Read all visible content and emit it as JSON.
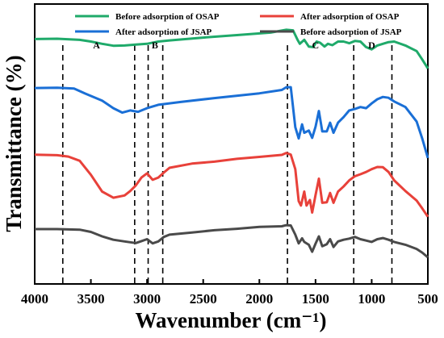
{
  "chart_data": {
    "type": "line",
    "title": "",
    "xlabel": "Wavenumber (cm⁻¹)",
    "ylabel": "Transmittance (%)",
    "xlim": [
      4000,
      500
    ],
    "x_reversed": true,
    "ylim": [
      0,
      1
    ],
    "y_ticks_shown": false,
    "xticks": [
      4000,
      3500,
      3000,
      2500,
      2000,
      1500,
      1000,
      500
    ],
    "grid": false,
    "legend_position": "top",
    "series": [
      {
        "name": "Before adsorption of OSAP",
        "color": "#1faa6a",
        "points": [
          [
            4000,
            0.875
          ],
          [
            3800,
            0.876
          ],
          [
            3600,
            0.872
          ],
          [
            3500,
            0.866
          ],
          [
            3400,
            0.858
          ],
          [
            3300,
            0.851
          ],
          [
            3200,
            0.852
          ],
          [
            3100,
            0.855
          ],
          [
            3000,
            0.858
          ],
          [
            2900,
            0.866
          ],
          [
            2800,
            0.87
          ],
          [
            2500,
            0.88
          ],
          [
            2200,
            0.889
          ],
          [
            1900,
            0.898
          ],
          [
            1760,
            0.908
          ],
          [
            1700,
            0.906
          ],
          [
            1660,
            0.872
          ],
          [
            1640,
            0.858
          ],
          [
            1600,
            0.872
          ],
          [
            1560,
            0.848
          ],
          [
            1520,
            0.846
          ],
          [
            1490,
            0.866
          ],
          [
            1460,
            0.862
          ],
          [
            1420,
            0.848
          ],
          [
            1390,
            0.858
          ],
          [
            1350,
            0.853
          ],
          [
            1300,
            0.866
          ],
          [
            1250,
            0.866
          ],
          [
            1200,
            0.86
          ],
          [
            1150,
            0.868
          ],
          [
            1100,
            0.866
          ],
          [
            1050,
            0.846
          ],
          [
            1000,
            0.838
          ],
          [
            950,
            0.852
          ],
          [
            900,
            0.858
          ],
          [
            850,
            0.864
          ],
          [
            800,
            0.866
          ],
          [
            700,
            0.852
          ],
          [
            600,
            0.832
          ],
          [
            550,
            0.802
          ],
          [
            500,
            0.77
          ]
        ]
      },
      {
        "name": "After adsorption of  JSAP",
        "color": "#1a6fd6",
        "points": [
          [
            4000,
            0.7
          ],
          [
            3800,
            0.701
          ],
          [
            3650,
            0.698
          ],
          [
            3550,
            0.68
          ],
          [
            3400,
            0.655
          ],
          [
            3300,
            0.628
          ],
          [
            3220,
            0.612
          ],
          [
            3150,
            0.62
          ],
          [
            3080,
            0.615
          ],
          [
            3000,
            0.628
          ],
          [
            2900,
            0.64
          ],
          [
            2700,
            0.65
          ],
          [
            2400,
            0.664
          ],
          [
            2000,
            0.681
          ],
          [
            1800,
            0.693
          ],
          [
            1760,
            0.703
          ],
          [
            1720,
            0.703
          ],
          [
            1680,
            0.56
          ],
          [
            1650,
            0.52
          ],
          [
            1620,
            0.57
          ],
          [
            1600,
            0.54
          ],
          [
            1560,
            0.548
          ],
          [
            1530,
            0.522
          ],
          [
            1500,
            0.562
          ],
          [
            1470,
            0.618
          ],
          [
            1440,
            0.545
          ],
          [
            1400,
            0.545
          ],
          [
            1370,
            0.576
          ],
          [
            1340,
            0.54
          ],
          [
            1300,
            0.576
          ],
          [
            1250,
            0.596
          ],
          [
            1200,
            0.62
          ],
          [
            1150,
            0.625
          ],
          [
            1100,
            0.632
          ],
          [
            1050,
            0.628
          ],
          [
            1000,
            0.645
          ],
          [
            950,
            0.66
          ],
          [
            900,
            0.668
          ],
          [
            850,
            0.665
          ],
          [
            800,
            0.652
          ],
          [
            700,
            0.632
          ],
          [
            600,
            0.58
          ],
          [
            550,
            0.52
          ],
          [
            500,
            0.45
          ]
        ]
      },
      {
        "name": "After adsorption of  OSAP",
        "color": "#e8413a",
        "points": [
          [
            4000,
            0.462
          ],
          [
            3800,
            0.46
          ],
          [
            3700,
            0.455
          ],
          [
            3600,
            0.44
          ],
          [
            3500,
            0.39
          ],
          [
            3400,
            0.33
          ],
          [
            3300,
            0.308
          ],
          [
            3200,
            0.316
          ],
          [
            3150,
            0.332
          ],
          [
            3100,
            0.352
          ],
          [
            3050,
            0.38
          ],
          [
            3000,
            0.395
          ],
          [
            2950,
            0.372
          ],
          [
            2900,
            0.38
          ],
          [
            2850,
            0.398
          ],
          [
            2800,
            0.415
          ],
          [
            2600,
            0.43
          ],
          [
            2400,
            0.437
          ],
          [
            2200,
            0.447
          ],
          [
            2000,
            0.454
          ],
          [
            1800,
            0.461
          ],
          [
            1760,
            0.468
          ],
          [
            1720,
            0.462
          ],
          [
            1680,
            0.41
          ],
          [
            1650,
            0.296
          ],
          [
            1630,
            0.28
          ],
          [
            1600,
            0.33
          ],
          [
            1580,
            0.28
          ],
          [
            1550,
            0.3
          ],
          [
            1530,
            0.255
          ],
          [
            1500,
            0.318
          ],
          [
            1470,
            0.376
          ],
          [
            1440,
            0.29
          ],
          [
            1400,
            0.292
          ],
          [
            1370,
            0.325
          ],
          [
            1340,
            0.29
          ],
          [
            1300,
            0.33
          ],
          [
            1250,
            0.348
          ],
          [
            1200,
            0.37
          ],
          [
            1150,
            0.385
          ],
          [
            1100,
            0.392
          ],
          [
            1050,
            0.4
          ],
          [
            1000,
            0.41
          ],
          [
            950,
            0.418
          ],
          [
            900,
            0.417
          ],
          [
            850,
            0.4
          ],
          [
            800,
            0.37
          ],
          [
            700,
            0.332
          ],
          [
            600,
            0.298
          ],
          [
            550,
            0.27
          ],
          [
            500,
            0.24
          ]
        ]
      },
      {
        "name": "Before adsorption of JSAP",
        "color": "#4a4a4a",
        "points": [
          [
            4000,
            0.196
          ],
          [
            3800,
            0.196
          ],
          [
            3600,
            0.194
          ],
          [
            3500,
            0.186
          ],
          [
            3400,
            0.17
          ],
          [
            3300,
            0.158
          ],
          [
            3200,
            0.152
          ],
          [
            3100,
            0.146
          ],
          [
            3050,
            0.153
          ],
          [
            3000,
            0.16
          ],
          [
            2950,
            0.145
          ],
          [
            2900,
            0.152
          ],
          [
            2850,
            0.168
          ],
          [
            2800,
            0.176
          ],
          [
            2600,
            0.184
          ],
          [
            2400,
            0.192
          ],
          [
            2200,
            0.197
          ],
          [
            2000,
            0.204
          ],
          [
            1800,
            0.206
          ],
          [
            1760,
            0.21
          ],
          [
            1720,
            0.209
          ],
          [
            1680,
            0.176
          ],
          [
            1650,
            0.145
          ],
          [
            1620,
            0.163
          ],
          [
            1600,
            0.15
          ],
          [
            1560,
            0.14
          ],
          [
            1530,
            0.115
          ],
          [
            1500,
            0.144
          ],
          [
            1470,
            0.17
          ],
          [
            1440,
            0.135
          ],
          [
            1400,
            0.142
          ],
          [
            1370,
            0.16
          ],
          [
            1340,
            0.132
          ],
          [
            1300,
            0.152
          ],
          [
            1250,
            0.158
          ],
          [
            1200,
            0.162
          ],
          [
            1150,
            0.168
          ],
          [
            1100,
            0.16
          ],
          [
            1050,
            0.155
          ],
          [
            1000,
            0.15
          ],
          [
            950,
            0.16
          ],
          [
            900,
            0.164
          ],
          [
            850,
            0.158
          ],
          [
            800,
            0.15
          ],
          [
            700,
            0.14
          ],
          [
            600,
            0.125
          ],
          [
            550,
            0.112
          ],
          [
            500,
            0.095
          ]
        ]
      }
    ],
    "reference_lines": [
      3750,
      3110,
      2990,
      2860,
      1750,
      1160,
      820
    ],
    "regions": [
      {
        "label": "A",
        "x": 3450
      },
      {
        "label": "B",
        "x": 2930
      },
      {
        "label": "C",
        "x": 1500
      },
      {
        "label": "D",
        "x": 1000
      }
    ]
  }
}
